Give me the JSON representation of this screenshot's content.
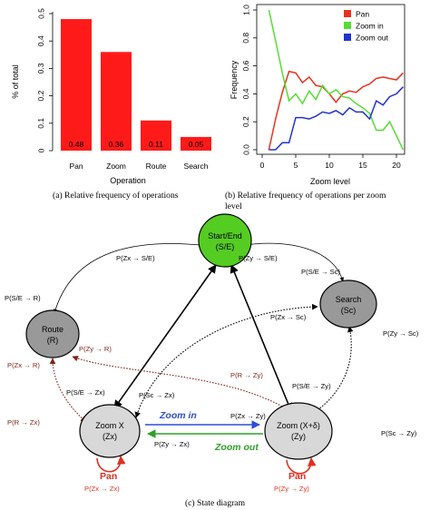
{
  "chart_data": [
    {
      "type": "bar",
      "categories": [
        "Pan",
        "Zoom",
        "Route",
        "Search"
      ],
      "values": [
        0.48,
        0.36,
        0.11,
        0.05
      ],
      "value_labels": [
        "0.48",
        "0.36",
        "0.11",
        "0.05"
      ],
      "title": "",
      "xlabel": "Operation",
      "ylabel": "% of total",
      "ylim": [
        0,
        0.5
      ],
      "yticks": [
        "0",
        "0.1",
        "0.2",
        "0.3",
        "0.4",
        "0.5"
      ],
      "bar_color": "#ff1a1a",
      "caption": "(a)  Relative frequency of operations"
    },
    {
      "type": "line",
      "x": [
        1,
        2,
        3,
        4,
        5,
        6,
        7,
        8,
        9,
        10,
        11,
        12,
        13,
        14,
        15,
        16,
        17,
        18,
        19,
        20,
        21
      ],
      "series": [
        {
          "name": "Pan",
          "color": "#e8321e",
          "values": [
            0.0,
            0.22,
            0.41,
            0.56,
            0.55,
            0.48,
            0.52,
            0.46,
            0.45,
            0.4,
            0.34,
            0.4,
            0.42,
            0.41,
            0.45,
            0.47,
            0.51,
            0.52,
            0.51,
            0.5,
            0.55
          ]
        },
        {
          "name": "Zoom in",
          "color": "#55dd33",
          "values": [
            1.0,
            0.78,
            0.55,
            0.35,
            0.4,
            0.33,
            0.42,
            0.36,
            0.46,
            0.4,
            0.43,
            0.38,
            0.37,
            0.33,
            0.3,
            0.26,
            0.14,
            0.14,
            0.2,
            0.1,
            0.0
          ]
        },
        {
          "name": "Zoom out",
          "color": "#2233cc",
          "values": [
            0.0,
            0.0,
            0.05,
            0.05,
            0.23,
            0.23,
            0.22,
            0.24,
            0.27,
            0.26,
            0.28,
            0.25,
            0.3,
            0.27,
            0.27,
            0.22,
            0.35,
            0.32,
            0.38,
            0.4,
            0.45
          ]
        }
      ],
      "xlabel": "Zoom level",
      "ylabel": "Frequency",
      "xlim": [
        0,
        21
      ],
      "ylim": [
        0,
        1.0
      ],
      "xticks": [
        "0",
        "5",
        "10",
        "15",
        "20"
      ],
      "yticks": [
        "0.0",
        "0.2",
        "0.4",
        "0.6",
        "0.8",
        "1.0"
      ],
      "legend": "top-right",
      "caption": "(b)  Relative frequency of operations per zoom level"
    }
  ],
  "diagram": {
    "caption": "(c)  State diagram",
    "nodes": {
      "se": {
        "line1": "Start/End",
        "line2": "(S/E)",
        "color": "#55cc22"
      },
      "search": {
        "line1": "Search",
        "line2": "(Sc)",
        "color": "#999999"
      },
      "route": {
        "line1": "Route",
        "line2": "(R)",
        "color": "#999999"
      },
      "zx": {
        "line1": "Zoom X",
        "line2": "(Zx)",
        "color": "#d8d8d8"
      },
      "zy": {
        "line1": "Zoom (X+δ)",
        "line2": "(Zy)",
        "color": "#d8d8d8"
      }
    },
    "edge_labels": {
      "zx_se": "P(Zx → S/E)",
      "zy_se": "P(Zy → S/E)",
      "se_sc": "P(S/E → Sc)",
      "se_r": "P(S/E → R)",
      "zx_sc": "P(Zx → Sc)",
      "zy_sc": "P(Zy → Sc)",
      "zy_r": "P(Zy → R)",
      "zx_r": "P(Zx → R)",
      "r_zy": "P(R → Zy)",
      "se_zx": "P(S/E → Zx)",
      "sc_zx": "P(Sc → Zx)",
      "se_zy": "P(S/E → Zy)",
      "r_zx": "P(R → Zx)",
      "sc_zy": "P(Sc → Zy)",
      "zx_zy": "P(Zx → Zy)",
      "zy_zx": "P(Zy → Zx)",
      "zx_zx": "P(Zx → Zx)",
      "zy_zy": "P(Zy → Zy)"
    },
    "transitions": {
      "zoom_in": "Zoom in",
      "zoom_out": "Zoom out",
      "pan_left": "Pan",
      "pan_right": "Pan"
    },
    "colors": {
      "zoom_in": "#2a4fd8",
      "zoom_out": "#2ea02a",
      "pan": "#e03020",
      "route_edge": "#7a2418"
    }
  }
}
